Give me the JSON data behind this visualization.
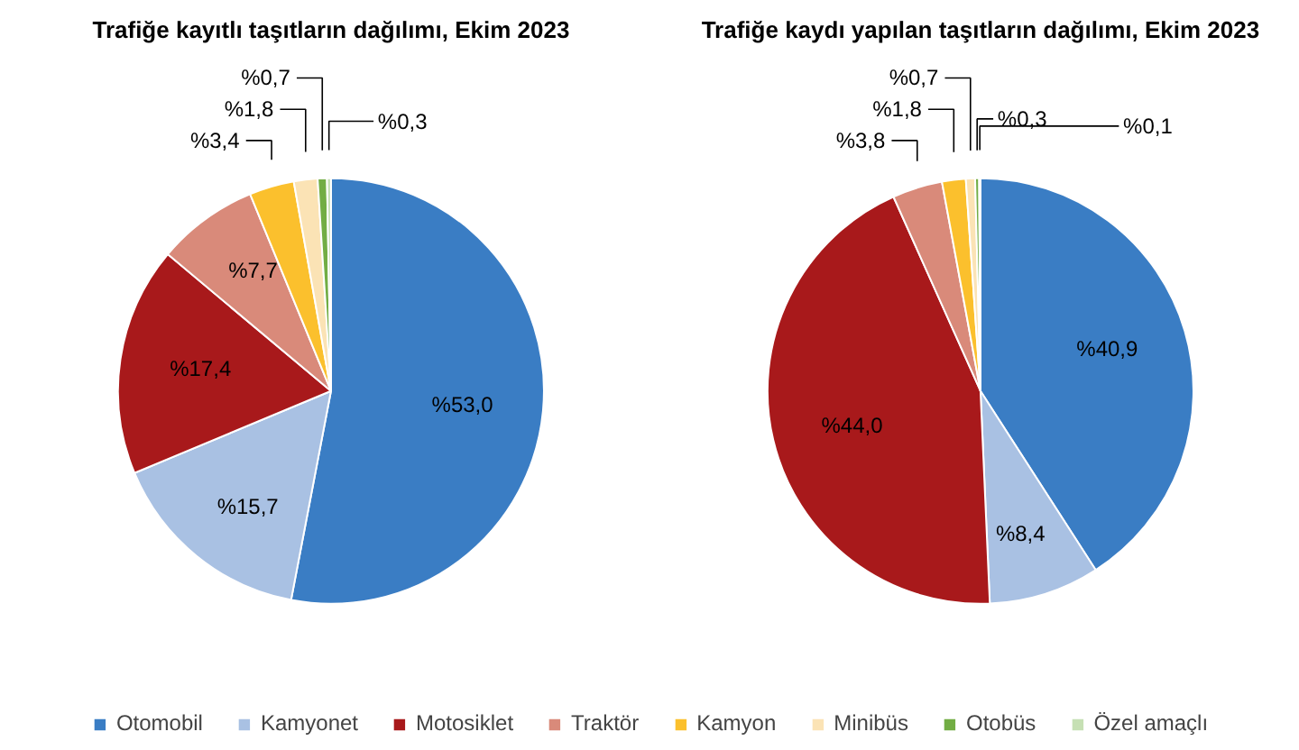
{
  "chart_data": [
    {
      "type": "pie",
      "title": "Trafiğe kayıtlı taşıtların dağılımı, Ekim 2023",
      "categories": [
        "Otomobil",
        "Kamyonet",
        "Motosiklet",
        "Traktör",
        "Kamyon",
        "Minibüs",
        "Otobüs",
        "Özel amaçlı"
      ],
      "values": [
        53.0,
        15.7,
        17.4,
        7.7,
        3.4,
        1.8,
        0.7,
        0.3
      ],
      "value_labels": [
        "%53,0",
        "%15,7",
        "%17,4",
        "%7,7",
        "%3,4",
        "%1,8",
        "%0,7",
        "%0,3"
      ],
      "colors": [
        "#3a7dc4",
        "#a9c1e3",
        "#a8191b",
        "#d98a7a",
        "#fbc02d",
        "#fbe3b5",
        "#72ad44",
        "#c6e0b4"
      ],
      "legend": "bottom"
    },
    {
      "type": "pie",
      "title": "Trafiğe kaydı yapılan taşıtların dağılımı, Ekim 2023",
      "categories": [
        null,
        null,
        null,
        null,
        null,
        null,
        null,
        null
      ],
      "values": [
        40.9,
        8.4,
        44.0,
        3.8,
        1.8,
        0.7,
        0.3,
        0.1
      ],
      "value_labels": [
        "%40,9",
        "%8,4",
        "%44,0",
        "%3,8",
        "%1,8",
        "%0,7",
        "%0,3",
        "%0,1"
      ],
      "colors": [
        "#3a7dc4",
        "#a9c1e3",
        "#a8191b",
        "#d98a7a",
        "#fbc02d",
        "#fbe3b5",
        "#72ad44",
        "#c6e0b4"
      ]
    }
  ]
}
